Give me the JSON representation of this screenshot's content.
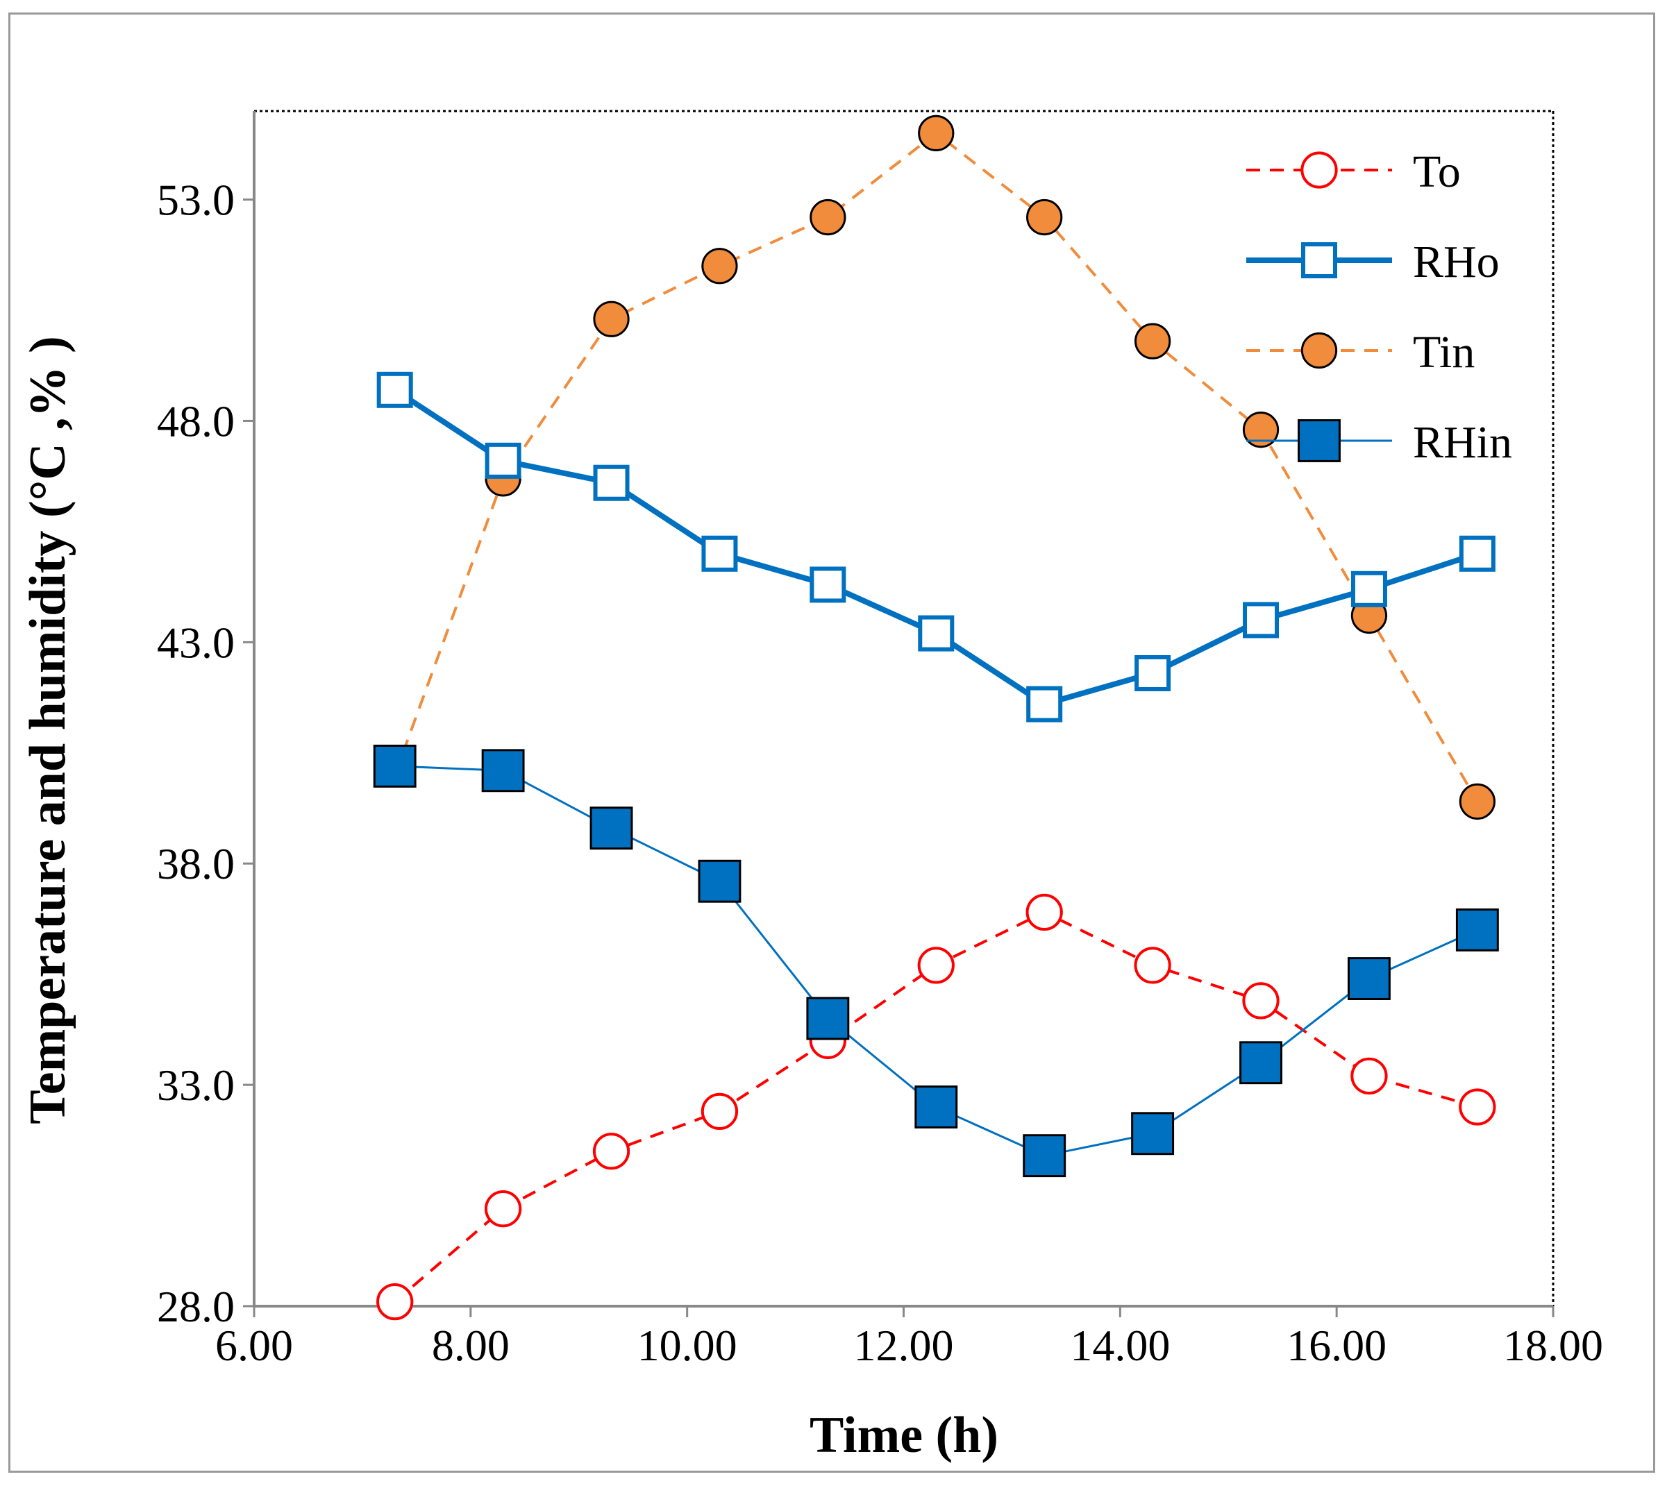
{
  "chart_data": {
    "type": "line",
    "title": "",
    "xlabel": "Time (h)",
    "ylabel": "Temperature and humidity (°C ,% )",
    "xlim": [
      6.0,
      18.0
    ],
    "ylim": [
      28.0,
      55.0
    ],
    "x_ticks": [
      6,
      8,
      10,
      12,
      14,
      16,
      18
    ],
    "x_tick_labels": [
      "6.00",
      "8.00",
      "10.00",
      "12.00",
      "14.00",
      "16.00",
      "18.00"
    ],
    "y_ticks": [
      28,
      33,
      38,
      43,
      48,
      53
    ],
    "y_tick_labels": [
      "28.0",
      "33.0",
      "38.0",
      "43.0",
      "48.0",
      "53.0"
    ],
    "grid": false,
    "legend_position": "top-right",
    "x": [
      7.3,
      8.3,
      9.3,
      10.3,
      11.3,
      12.3,
      13.3,
      14.3,
      15.3,
      16.3,
      17.3
    ],
    "series": [
      {
        "name": "To",
        "color": "#ff0000",
        "line": "dashed",
        "marker": "circle-open",
        "values": [
          28.1,
          30.2,
          31.5,
          32.4,
          34.0,
          35.7,
          36.9,
          35.7,
          34.9,
          33.2,
          32.5
        ]
      },
      {
        "name": "RHo",
        "color": "#0070c0",
        "line": "solid-thick",
        "marker": "square-open",
        "values": [
          48.7,
          47.1,
          46.6,
          45.0,
          44.3,
          43.2,
          41.6,
          42.3,
          43.5,
          44.2,
          45.0
        ]
      },
      {
        "name": "Tin",
        "color": "#f08c3c",
        "line": "dashed",
        "marker": "circle-filled",
        "values": [
          40.0,
          46.7,
          50.3,
          51.5,
          52.6,
          54.5,
          52.6,
          49.8,
          47.8,
          43.6,
          39.4
        ]
      },
      {
        "name": "RHin",
        "color": "#0070c0",
        "line": "solid-thin",
        "marker": "square-filled",
        "values": [
          40.2,
          40.1,
          38.8,
          37.6,
          34.5,
          32.5,
          31.4,
          31.9,
          33.5,
          35.4,
          36.5
        ]
      }
    ]
  }
}
